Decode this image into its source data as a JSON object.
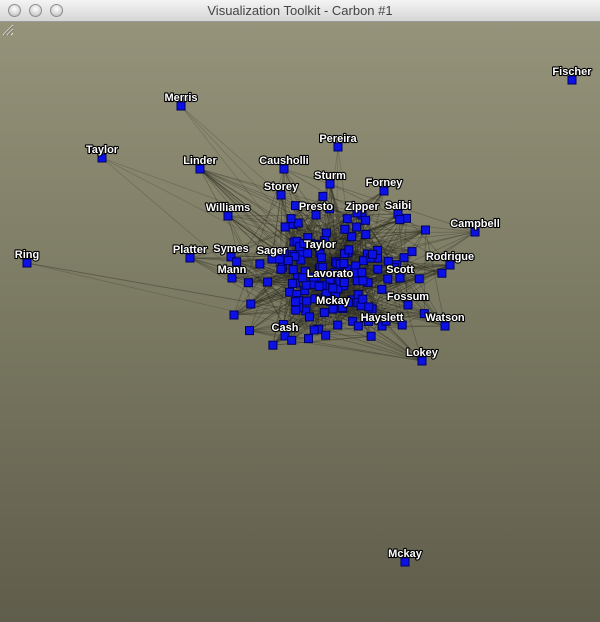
{
  "window": {
    "title": "Visualization Toolkit - Carbon #1",
    "buttons": [
      "close",
      "minimize",
      "zoom"
    ]
  },
  "colors": {
    "node": "#0c12e6",
    "edge": "#2b2a1f",
    "label": "#ffffff",
    "background_top": "#95937a",
    "background_bottom": "#5f5d4b"
  },
  "graph": {
    "labeled_nodes": [
      {
        "name": "Fischer"
      },
      {
        "name": "Merris"
      },
      {
        "name": "Taylor"
      },
      {
        "name": "Pereira"
      },
      {
        "name": "Linder"
      },
      {
        "name": "Causholli"
      },
      {
        "name": "Sturm"
      },
      {
        "name": "Forney"
      },
      {
        "name": "Storey"
      },
      {
        "name": "Williams"
      },
      {
        "name": "Presto"
      },
      {
        "name": "Zipper"
      },
      {
        "name": "Saibi"
      },
      {
        "name": "Campbell"
      },
      {
        "name": "Ring"
      },
      {
        "name": "Platter"
      },
      {
        "name": "Symes"
      },
      {
        "name": "Sager"
      },
      {
        "name": "Taylor"
      },
      {
        "name": "Rodrigue"
      },
      {
        "name": "Mann"
      },
      {
        "name": "Lavorato"
      },
      {
        "name": "Scott"
      },
      {
        "name": "Mckay"
      },
      {
        "name": "Fossum"
      },
      {
        "name": "Hayslett"
      },
      {
        "name": "Watson"
      },
      {
        "name": "Cash"
      },
      {
        "name": "Lokey"
      },
      {
        "name": "Mckay"
      }
    ]
  }
}
